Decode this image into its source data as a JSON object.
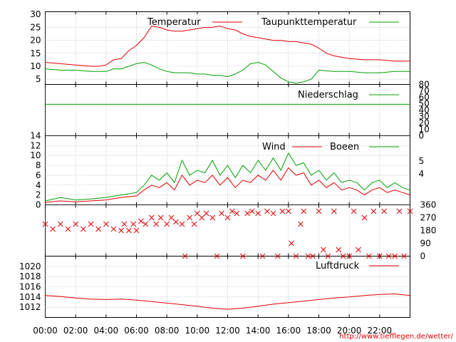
{
  "x_axis": {
    "tick_labels": [
      "00:00",
      "02:00",
      "04:00",
      "06:00",
      "08:00",
      "10:00",
      "12:00",
      "14:00",
      "16:00",
      "18:00",
      "20:00",
      "22:00"
    ],
    "tick_hours": [
      0,
      2,
      4,
      6,
      8,
      10,
      12,
      14,
      16,
      18,
      20,
      22
    ],
    "range_hours": [
      0,
      24
    ]
  },
  "source_url": "http://www.tiefflegen.de/wetter/",
  "colors": {
    "red": "#e00000",
    "green": "#00a000",
    "grid": "#999999"
  },
  "chart_data": [
    {
      "type": "line",
      "panel": "temperature",
      "ylim": [
        3,
        31
      ],
      "yticks": [
        5,
        10,
        15,
        20,
        25,
        30
      ],
      "grid": true,
      "legend_placement": "top",
      "series": [
        {
          "name": "Temperatur",
          "color": "#e00000",
          "x": [
            0,
            1,
            2,
            3,
            3.5,
            4,
            4.5,
            5,
            5.5,
            6,
            6.5,
            7,
            7.5,
            8,
            8.5,
            9,
            9.5,
            10,
            10.5,
            11,
            11.5,
            12,
            12.5,
            13,
            13.5,
            14,
            14.5,
            15,
            15.5,
            16,
            16.5,
            17,
            17.5,
            18,
            18.5,
            19,
            19.5,
            20,
            21,
            22,
            23,
            24
          ],
          "y": [
            11.5,
            11,
            10.5,
            10,
            10,
            10.5,
            12.5,
            13,
            16,
            18,
            21,
            25.5,
            25,
            24,
            23.5,
            23.5,
            24,
            24.5,
            25,
            25,
            25.5,
            24.5,
            24,
            22.5,
            21.5,
            21,
            20.5,
            20,
            20,
            19.5,
            19.5,
            19,
            18.5,
            17,
            15,
            14,
            13.5,
            13,
            12.5,
            12.5,
            12,
            12
          ]
        },
        {
          "name": "Taupunkttemperatur",
          "color": "#00a000",
          "x": [
            0,
            1,
            2,
            3,
            4,
            4.5,
            5,
            5.5,
            6,
            6.5,
            7,
            7.5,
            8,
            8.5,
            9,
            9.5,
            10,
            10.5,
            11,
            11.5,
            12,
            12.5,
            13,
            13.5,
            14,
            14.5,
            15,
            15.5,
            16,
            16.5,
            17,
            17.5,
            18,
            19,
            20,
            21,
            22,
            23,
            24
          ],
          "y": [
            9,
            8.5,
            8.5,
            8,
            8,
            9,
            9,
            10,
            11,
            11.5,
            10.5,
            9,
            8,
            7.5,
            7.5,
            7.5,
            7,
            7,
            6.5,
            6.5,
            6,
            7,
            8.5,
            11,
            11.5,
            10.5,
            8,
            5.5,
            4,
            3.5,
            4,
            5,
            8.5,
            8,
            8,
            7.5,
            7.5,
            8,
            8
          ]
        }
      ]
    },
    {
      "type": "line",
      "panel": "precipitation",
      "ylim": [
        0,
        80
      ],
      "yticks": [
        0,
        10,
        20,
        30,
        40,
        50,
        60,
        70,
        80
      ],
      "series": [
        {
          "name": "Niederschlag",
          "color": "#00a000",
          "x": [
            0,
            24
          ],
          "y": [
            49,
            49
          ]
        }
      ]
    },
    {
      "type": "line",
      "panel": "wind",
      "ylim": [
        0,
        14
      ],
      "yticks": [
        0,
        2,
        4,
        6,
        8,
        10,
        12,
        14
      ],
      "right_tick_labels": [
        "5",
        "4"
      ],
      "series": [
        {
          "name": "Wind",
          "color": "#e00000",
          "x": [
            0,
            1,
            2,
            3,
            4,
            5,
            6,
            6.5,
            7,
            7.5,
            8,
            8.5,
            9,
            9.5,
            10,
            10.5,
            11,
            11.5,
            12,
            12.5,
            13,
            13.5,
            14,
            14.5,
            15,
            15.5,
            16,
            16.5,
            17,
            17.5,
            18,
            18.5,
            19,
            19.5,
            20,
            20.5,
            21,
            21.5,
            22,
            22.5,
            23,
            23.5,
            24
          ],
          "y": [
            0.5,
            0.8,
            0.6,
            0.8,
            1,
            1.5,
            1.8,
            3,
            4,
            3.5,
            4.5,
            3,
            6,
            4,
            5,
            4.5,
            6,
            4,
            5.5,
            3.5,
            5,
            4.5,
            6,
            5,
            7,
            5,
            7.5,
            6,
            6.5,
            4,
            5,
            3.5,
            4.5,
            3,
            3.5,
            3,
            2,
            3,
            3.5,
            2.5,
            3,
            2.5,
            2
          ]
        },
        {
          "name": "Boeen",
          "color": "#00a000",
          "x": [
            0,
            1,
            2,
            3,
            4,
            5,
            6,
            6.5,
            7,
            7.5,
            8,
            8.5,
            9,
            9.5,
            10,
            10.5,
            11,
            11.5,
            12,
            12.5,
            13,
            13.5,
            14,
            14.5,
            15,
            15.5,
            16,
            16.5,
            17,
            17.5,
            18,
            18.5,
            19,
            19.5,
            20,
            20.5,
            21,
            21.5,
            22,
            22.5,
            23,
            23.5,
            24
          ],
          "y": [
            0.8,
            1.5,
            1,
            1.2,
            1.5,
            2,
            2.5,
            4,
            6,
            5,
            6.5,
            4.5,
            9,
            6,
            7,
            6.5,
            9,
            6,
            8,
            5.5,
            8,
            6.5,
            9,
            7,
            9.5,
            7,
            10.5,
            8,
            8.5,
            6,
            7,
            5,
            6.5,
            4.5,
            5,
            4.5,
            3,
            4.5,
            5,
            3.5,
            4.5,
            3.5,
            3
          ]
        }
      ]
    },
    {
      "type": "scatter",
      "panel": "wind-direction",
      "ylim": [
        0,
        360
      ],
      "right_tick_labels": [
        "360",
        "270",
        "180",
        "90",
        "0"
      ],
      "marker": "x",
      "series": [
        {
          "name": "direction",
          "color": "#e00000",
          "x": [
            0,
            0.5,
            1,
            1.5,
            2,
            2.5,
            3,
            3.5,
            4,
            4.5,
            5,
            5.2,
            5.5,
            5.8,
            6,
            6.3,
            6.6,
            7,
            7.3,
            7.6,
            8,
            8.3,
            8.6,
            9,
            9.2,
            9.5,
            9.8,
            10,
            10.3,
            10.6,
            11,
            11.3,
            11.6,
            12,
            12.3,
            12.6,
            13,
            13.3,
            13.6,
            14,
            14.3,
            14.6,
            15,
            15.3,
            15.6,
            16,
            16.2,
            16.5,
            16.8,
            17,
            17.3,
            17.6,
            18,
            18.3,
            18.6,
            19,
            19.3,
            19.6,
            20,
            20.3,
            20.6,
            21,
            21.3,
            21.6,
            22,
            22.3,
            22.6,
            23,
            23.3,
            23.6,
            24
          ],
          "y": [
            225,
            190,
            225,
            190,
            225,
            190,
            225,
            190,
            225,
            190,
            180,
            225,
            180,
            225,
            180,
            245,
            225,
            270,
            225,
            270,
            225,
            270,
            240,
            225,
            0,
            270,
            225,
            300,
            270,
            300,
            270,
            0,
            300,
            270,
            315,
            300,
            0,
            300,
            315,
            300,
            0,
            315,
            300,
            0,
            315,
            315,
            90,
            0,
            225,
            315,
            0,
            0,
            315,
            45,
            0,
            315,
            45,
            0,
            0,
            315,
            45,
            270,
            0,
            315,
            0,
            315,
            0,
            0,
            315,
            0,
            315
          ]
        }
      ]
    },
    {
      "type": "line",
      "panel": "pressure",
      "ylim": [
        1010,
        1022
      ],
      "yticks": [
        1012,
        1014,
        1016,
        1018,
        1020
      ],
      "series": [
        {
          "name": "Luftdruck",
          "color": "#e00000",
          "x": [
            0,
            1,
            2,
            3,
            4,
            5,
            6,
            7,
            8,
            9,
            10,
            11,
            12,
            13,
            14,
            15,
            16,
            17,
            18,
            19,
            20,
            21,
            22,
            23,
            24
          ],
          "y": [
            1014.3,
            1014.1,
            1013.8,
            1013.6,
            1013.5,
            1013.6,
            1013.4,
            1013.1,
            1012.8,
            1012.5,
            1012.2,
            1011.8,
            1011.6,
            1011.8,
            1012.2,
            1012.6,
            1012.9,
            1013.2,
            1013.5,
            1013.8,
            1014,
            1014.3,
            1014.5,
            1014.6,
            1014.3
          ]
        }
      ]
    }
  ]
}
